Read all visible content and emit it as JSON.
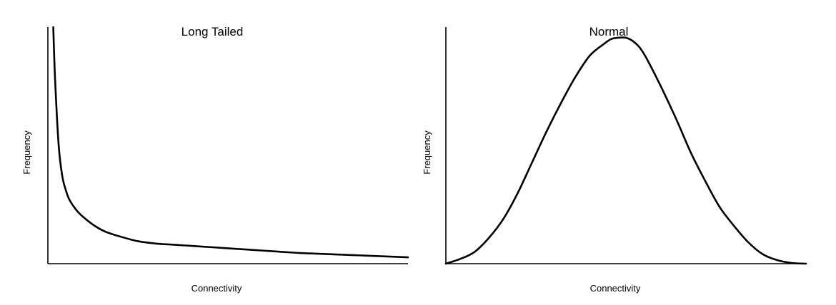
{
  "chart_data": [
    {
      "type": "line",
      "title": "Long Tailed",
      "xlabel": "Connectivity",
      "ylabel": "Frequency",
      "xlim": [
        0,
        100
      ],
      "ylim": [
        0,
        100
      ],
      "grid": false,
      "series": [
        {
          "x": [
            1.5,
            2,
            3,
            4,
            5,
            6,
            8,
            10,
            13,
            16,
            20,
            25,
            30,
            35,
            40,
            45,
            50,
            55,
            60,
            65,
            70,
            75,
            80,
            85,
            90,
            95,
            100
          ],
          "y": [
            100,
            78,
            50,
            37,
            31,
            27,
            22.5,
            19.5,
            16,
            13.5,
            11.5,
            9.5,
            8.5,
            8,
            7.5,
            7,
            6.5,
            6,
            5.5,
            5,
            4.5,
            4.2,
            3.9,
            3.6,
            3.3,
            3,
            2.7
          ]
        }
      ]
    },
    {
      "type": "line",
      "title": "Normal",
      "xlabel": "Connectivity",
      "ylabel": "Frequency",
      "xlim": [
        0,
        100
      ],
      "ylim": [
        0,
        100
      ],
      "grid": false,
      "series": [
        {
          "x": [
            0,
            4,
            8,
            12,
            16,
            20,
            24,
            28,
            32,
            36,
            40,
            44,
            46,
            48,
            50,
            52,
            54,
            56,
            60,
            64,
            68,
            72,
            76,
            80,
            84,
            88,
            92,
            96,
            100
          ],
          "y": [
            0,
            2,
            5,
            11,
            19,
            30,
            43,
            56,
            68,
            79,
            88,
            93,
            95,
            95.5,
            95.5,
            94,
            91,
            86,
            74,
            61,
            47,
            35,
            24,
            16,
            9,
            4,
            1.5,
            0.3,
            0
          ]
        }
      ]
    }
  ]
}
